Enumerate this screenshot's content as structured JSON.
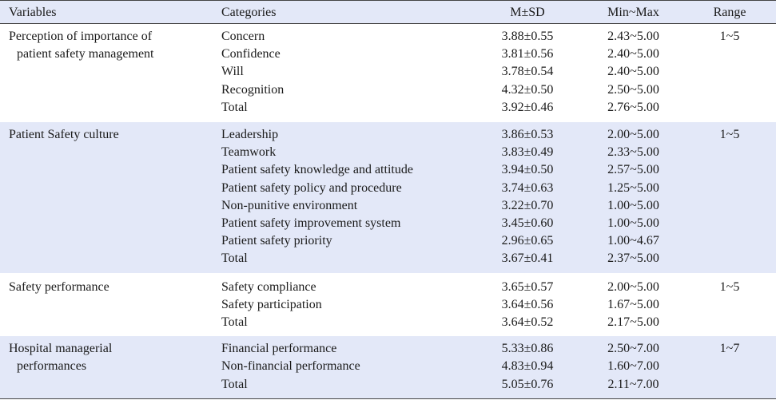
{
  "header": {
    "variables": "Variables",
    "categories": "Categories",
    "msd": "M±SD",
    "minmax": "Min~Max",
    "range": "Range"
  },
  "groups": [
    {
      "variable_line1": "Perception of importance of",
      "variable_line2": "patient safety management",
      "range": "1~5",
      "rows": [
        {
          "category": "Concern",
          "msd": "3.88±0.55",
          "minmax": "2.43~5.00"
        },
        {
          "category": "Confidence",
          "msd": "3.81±0.56",
          "minmax": "2.40~5.00"
        },
        {
          "category": "Will",
          "msd": "3.78±0.54",
          "minmax": "2.40~5.00"
        },
        {
          "category": "Recognition",
          "msd": "4.32±0.50",
          "minmax": "2.50~5.00"
        },
        {
          "category": "Total",
          "msd": "3.92±0.46",
          "minmax": "2.76~5.00"
        }
      ]
    },
    {
      "variable_line1": "Patient Safety culture",
      "variable_line2": "",
      "range": "1~5",
      "rows": [
        {
          "category": "Leadership",
          "msd": "3.86±0.53",
          "minmax": "2.00~5.00"
        },
        {
          "category": "Teamwork",
          "msd": "3.83±0.49",
          "minmax": "2.33~5.00"
        },
        {
          "category": "Patient safety knowledge and attitude",
          "msd": "3.94±0.50",
          "minmax": "2.57~5.00"
        },
        {
          "category": "Patient safety policy and procedure",
          "msd": "3.74±0.63",
          "minmax": "1.25~5.00"
        },
        {
          "category": "Non-punitive environment",
          "msd": "3.22±0.70",
          "minmax": "1.00~5.00"
        },
        {
          "category": "Patient safety improvement system",
          "msd": "3.45±0.60",
          "minmax": "1.00~5.00"
        },
        {
          "category": "Patient safety priority",
          "msd": "2.96±0.65",
          "minmax": "1.00~4.67"
        },
        {
          "category": "Total",
          "msd": "3.67±0.41",
          "minmax": "2.37~5.00"
        }
      ]
    },
    {
      "variable_line1": "Safety performance",
      "variable_line2": "",
      "range": "1~5",
      "rows": [
        {
          "category": "Safety compliance",
          "msd": "3.65±0.57",
          "minmax": "2.00~5.00"
        },
        {
          "category": "Safety participation",
          "msd": "3.64±0.56",
          "minmax": "1.67~5.00"
        },
        {
          "category": "Total",
          "msd": "3.64±0.52",
          "minmax": "2.17~5.00"
        }
      ]
    },
    {
      "variable_line1": "Hospital managerial",
      "variable_line2": "performances",
      "range": "1~7",
      "rows": [
        {
          "category": "Financial performance",
          "msd": "5.33±0.86",
          "minmax": "2.50~7.00"
        },
        {
          "category": "Non-financial performance",
          "msd": "4.83±0.94",
          "minmax": "1.60~7.00"
        },
        {
          "category": "Total",
          "msd": "5.05±0.76",
          "minmax": "2.11~7.00"
        }
      ]
    }
  ]
}
